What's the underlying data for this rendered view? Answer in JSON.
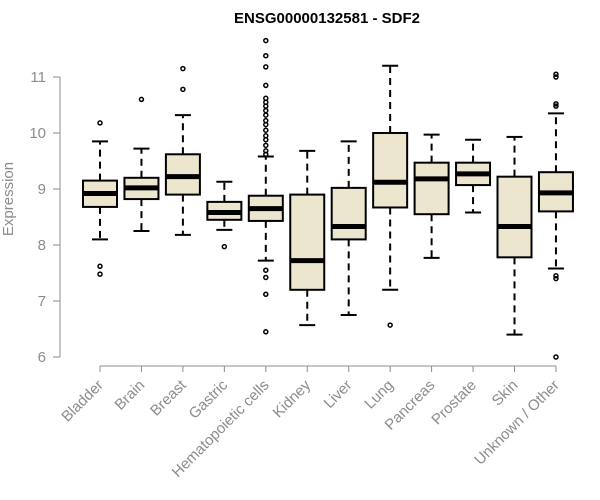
{
  "chart_data": {
    "type": "boxplot",
    "title": "ENSG00000132581 - SDF2",
    "xlabel": "",
    "ylabel": "Expression",
    "ylim": [
      6,
      11.5
    ],
    "yticks": [
      6,
      7,
      8,
      9,
      10,
      11
    ],
    "colors": {
      "box_fill": "#ede6cf",
      "box_stroke": "#000000",
      "median": "#000000",
      "axis": "#8c8c8c"
    },
    "categories": [
      "Bladder",
      "Brain",
      "Breast",
      "Gastric",
      "Hematopoietic cells",
      "Kidney",
      "Liver",
      "Lung",
      "Pancreas",
      "Prostate",
      "Skin",
      "Unknown / Other"
    ],
    "boxes": [
      {
        "name": "Bladder",
        "whisker_low": 8.1,
        "q1": 8.68,
        "median": 8.92,
        "q3": 9.15,
        "whisker_high": 9.85,
        "outliers": [
          10.18,
          7.62,
          7.48
        ]
      },
      {
        "name": "Brain",
        "whisker_low": 8.25,
        "q1": 8.82,
        "median": 9.02,
        "q3": 9.2,
        "whisker_high": 9.72,
        "outliers": [
          10.6
        ]
      },
      {
        "name": "Breast",
        "whisker_low": 8.18,
        "q1": 8.9,
        "median": 9.22,
        "q3": 9.62,
        "whisker_high": 10.32,
        "outliers": [
          11.15,
          10.78
        ]
      },
      {
        "name": "Gastric",
        "whisker_low": 8.27,
        "q1": 8.45,
        "median": 8.58,
        "q3": 8.77,
        "whisker_high": 9.13,
        "outliers": [
          7.97
        ]
      },
      {
        "name": "Hematopoietic cells",
        "whisker_low": 7.72,
        "q1": 8.43,
        "median": 8.65,
        "q3": 8.88,
        "whisker_high": 9.58,
        "outliers": [
          11.65,
          11.38,
          11.18,
          10.85,
          10.62,
          10.55,
          10.48,
          10.4,
          10.32,
          10.22,
          10.15,
          10.05,
          9.95,
          9.88,
          9.78,
          9.68,
          9.62,
          7.55,
          7.42,
          7.12,
          6.45
        ]
      },
      {
        "name": "Kidney",
        "whisker_low": 6.57,
        "q1": 7.2,
        "median": 7.72,
        "q3": 8.9,
        "whisker_high": 9.68,
        "outliers": []
      },
      {
        "name": "Liver",
        "whisker_low": 6.75,
        "q1": 8.1,
        "median": 8.33,
        "q3": 9.02,
        "whisker_high": 9.85,
        "outliers": []
      },
      {
        "name": "Lung",
        "whisker_low": 7.2,
        "q1": 8.67,
        "median": 9.12,
        "q3": 10.0,
        "whisker_high": 11.2,
        "outliers": [
          6.57
        ]
      },
      {
        "name": "Pancreas",
        "whisker_low": 7.77,
        "q1": 8.55,
        "median": 9.18,
        "q3": 9.47,
        "whisker_high": 9.97,
        "outliers": []
      },
      {
        "name": "Prostate",
        "whisker_low": 8.58,
        "q1": 9.07,
        "median": 9.27,
        "q3": 9.47,
        "whisker_high": 9.88,
        "outliers": []
      },
      {
        "name": "Skin",
        "whisker_low": 6.4,
        "q1": 7.78,
        "median": 8.33,
        "q3": 9.22,
        "whisker_high": 9.93,
        "outliers": []
      },
      {
        "name": "Unknown / Other",
        "whisker_low": 7.58,
        "q1": 8.6,
        "median": 8.93,
        "q3": 9.3,
        "whisker_high": 10.35,
        "outliers": [
          11.05,
          11.0,
          10.52,
          10.48,
          7.45,
          7.4,
          6.0
        ]
      }
    ]
  }
}
